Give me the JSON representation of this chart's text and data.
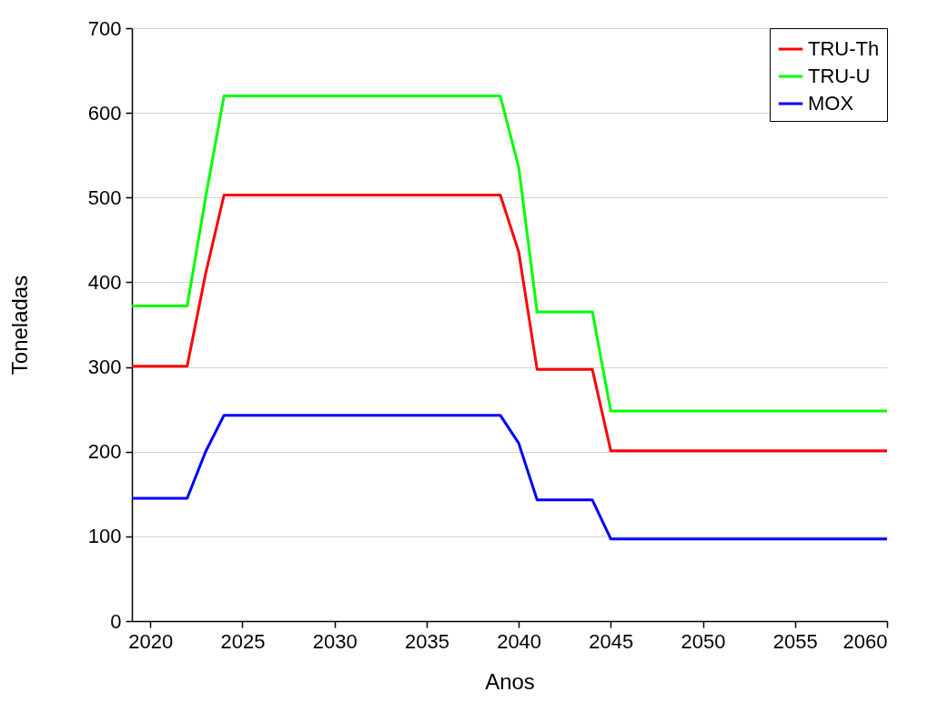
{
  "chart_data": {
    "type": "line",
    "xlabel": "Anos",
    "ylabel": "Toneladas",
    "xlim": [
      2019,
      2060
    ],
    "xticks": [
      2020,
      2025,
      2030,
      2035,
      2040,
      2045,
      2050,
      2055,
      2060
    ],
    "ylim": [
      0,
      700
    ],
    "yticks": [
      0,
      100,
      200,
      300,
      400,
      500,
      600,
      700
    ],
    "grid": "y",
    "legend": "top right",
    "x": [
      2019,
      2022,
      2023,
      2024,
      2039,
      2040,
      2041,
      2044,
      2045,
      2060
    ],
    "series": [
      {
        "name": "TRU-Th",
        "color": "#ff0000",
        "values": [
          301,
          301,
          410,
          503,
          503,
          436,
          297,
          297,
          201,
          201
        ]
      },
      {
        "name": "TRU-U",
        "color": "#00ff00",
        "values": [
          372,
          372,
          500,
          620,
          620,
          536,
          365,
          365,
          248,
          248
        ]
      },
      {
        "name": "MOX",
        "color": "#0000ff",
        "values": [
          145,
          145,
          200,
          243,
          243,
          210,
          143,
          143,
          97,
          97
        ]
      }
    ]
  }
}
